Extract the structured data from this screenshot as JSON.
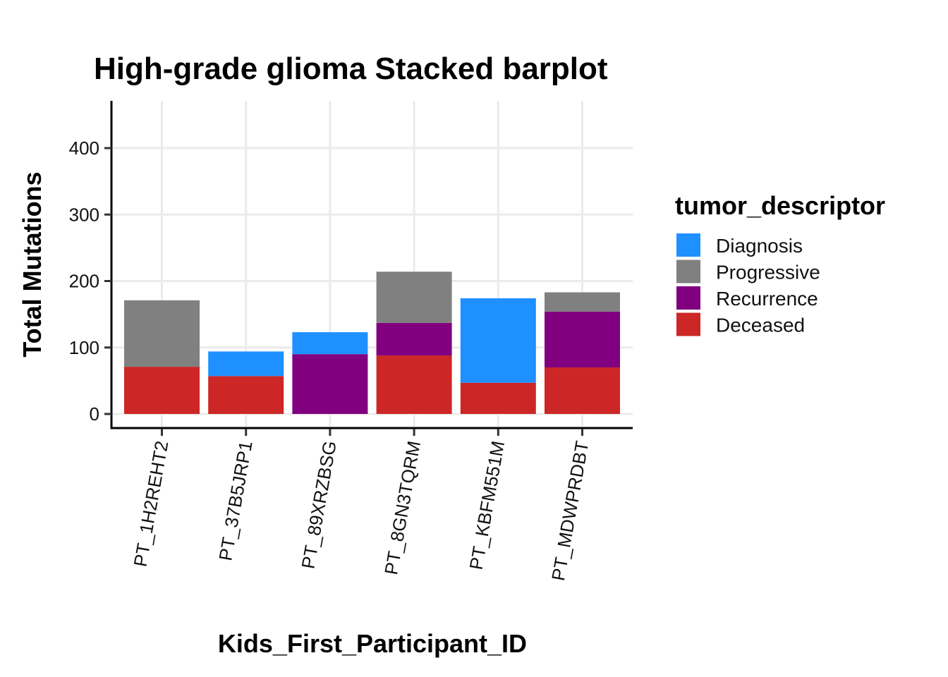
{
  "chart_data": {
    "type": "bar",
    "stacked": true,
    "title": "High-grade glioma Stacked barplot",
    "xlabel": "Kids_First_Participant_ID",
    "ylabel": "Total Mutations",
    "ylim": [
      0,
      470
    ],
    "yticks": [
      0,
      100,
      200,
      300,
      400
    ],
    "grid": true,
    "legend_position": "right",
    "legend_title": "tumor_descriptor",
    "categories": [
      "PT_1H2REHT2",
      "PT_37B5JRP1",
      "PT_89XRZBSG",
      "PT_8GN3TQRM",
      "PT_KBFM551M",
      "PT_MDWPRDBT"
    ],
    "stack_order": [
      "Deceased",
      "Recurrence",
      "Diagnosis",
      "Progressive"
    ],
    "series": [
      {
        "name": "Diagnosis",
        "color": "#1E90FF",
        "values": [
          0,
          37,
          33,
          0,
          127,
          0
        ]
      },
      {
        "name": "Progressive",
        "color": "#808080",
        "values": [
          100,
          0,
          0,
          77,
          0,
          29
        ]
      },
      {
        "name": "Recurrence",
        "color": "#800080",
        "values": [
          0,
          0,
          90,
          49,
          0,
          84
        ]
      },
      {
        "name": "Deceased",
        "color": "#CD2626",
        "values": [
          71,
          57,
          0,
          88,
          47,
          70
        ]
      }
    ]
  }
}
